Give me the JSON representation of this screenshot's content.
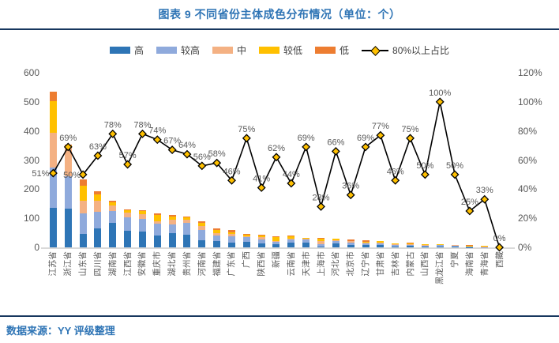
{
  "header": {
    "title": "图表 9 不同省份主体成色分布情况（单位：个）"
  },
  "footer": {
    "source": "数据来源：YY 评级整理"
  },
  "legend": {
    "bar_items": [
      {
        "label": "高",
        "color": "#2E75B6"
      },
      {
        "label": "较高",
        "color": "#8FAADC"
      },
      {
        "label": "中",
        "color": "#F4B183"
      },
      {
        "label": "较低",
        "color": "#FFC000"
      },
      {
        "label": "低",
        "color": "#ED7D31"
      }
    ],
    "line_item": {
      "label": "80%以上占比",
      "line_color": "#000000",
      "marker_color": "#FFC000"
    }
  },
  "axes": {
    "left_ticks": [
      "0",
      "100",
      "200",
      "300",
      "400",
      "500",
      "600"
    ],
    "right_ticks": [
      "0%",
      "20%",
      "40%",
      "60%",
      "80%",
      "100%",
      "120%"
    ]
  },
  "chart_data": {
    "type": "bar",
    "stacked": true,
    "grid": false,
    "legend_position": "top",
    "title": "图表 9 不同省份主体成色分布情况（单位：个）",
    "xlabel": "",
    "ylabel_left": "",
    "ylabel_right": "",
    "ylim_left": [
      0,
      600
    ],
    "ylim_right_pct": [
      0,
      120
    ],
    "categories": [
      "江苏省",
      "浙江省",
      "山东省",
      "四川省",
      "湖南省",
      "江西省",
      "安徽省",
      "重庆市",
      "湖北省",
      "贵州省",
      "河南省",
      "福建省",
      "广东省",
      "广西",
      "陕西省",
      "新疆",
      "云南省",
      "天津市",
      "上海市",
      "河北省",
      "北京市",
      "辽宁省",
      "甘肃省",
      "吉林省",
      "内蒙古",
      "山西省",
      "黑龙江省",
      "宁夏",
      "海南省",
      "青海省",
      "西藏"
    ],
    "series": [
      {
        "name": "高",
        "color": "#2E75B6",
        "values": [
          135,
          133,
          45,
          65,
          85,
          58,
          54,
          41,
          48,
          43,
          24,
          21,
          15,
          20,
          13,
          10,
          15,
          15,
          4,
          13,
          8,
          8,
          9,
          4,
          5,
          3,
          4,
          3,
          1,
          0,
          0
        ]
      },
      {
        "name": "较高",
        "color": "#8FAADC",
        "values": [
          138,
          111,
          73,
          56,
          40,
          46,
          45,
          41,
          31,
          42,
          37,
          20,
          24,
          14,
          15,
          9,
          11,
          12,
          6,
          9,
          7,
          5,
          4,
          5,
          4,
          3,
          3,
          3,
          1,
          1,
          0
        ]
      },
      {
        "name": "中",
        "color": "#F4B183",
        "values": [
          120,
          100,
          41,
          38,
          20,
          15,
          14,
          9,
          16,
          9,
          12,
          9,
          8,
          4,
          7,
          3,
          5,
          2,
          13,
          3,
          6,
          3,
          2,
          3,
          2,
          2,
          1,
          1,
          1,
          3,
          1
        ]
      },
      {
        "name": "较低",
        "color": "#FFC000",
        "values": [
          109,
          6,
          54,
          22,
          10,
          9,
          12,
          21,
          11,
          10,
          11,
          9,
          4,
          5,
          5,
          13,
          6,
          3,
          8,
          5,
          1,
          4,
          6,
          2,
          4,
          2,
          3,
          1,
          3,
          1,
          0
        ]
      },
      {
        "name": "低",
        "color": "#ED7D31",
        "values": [
          33,
          2,
          21,
          11,
          5,
          3,
          3,
          6,
          5,
          3,
          5,
          6,
          10,
          2,
          3,
          2,
          3,
          2,
          3,
          1,
          4,
          4,
          1,
          1,
          1,
          1,
          1,
          0,
          1,
          0,
          0
        ]
      }
    ],
    "line_series": {
      "name": "80%以上占比",
      "axis": "right",
      "color": "#000000",
      "marker": "diamond",
      "marker_color": "#FFC000",
      "values_pct": [
        51,
        69,
        50,
        63,
        78,
        57,
        78,
        74,
        67,
        64,
        56,
        58,
        46,
        75,
        41,
        62,
        44,
        69,
        28,
        66,
        36,
        69,
        77,
        46,
        75,
        50,
        100,
        50,
        25,
        33,
        0
      ],
      "labels": [
        "51%",
        "69%",
        "50%",
        "63%",
        "78%",
        "57%",
        "78%",
        "74%",
        "67%",
        "64%",
        "56%",
        "58%",
        "46%",
        "75%",
        "41%",
        "62%",
        "44%",
        "69%",
        "28%",
        "66%",
        "36%",
        "69%",
        "77%",
        "46%",
        "75%",
        "50%",
        "100%",
        "50%",
        "25%",
        "33%",
        "0%"
      ]
    }
  }
}
